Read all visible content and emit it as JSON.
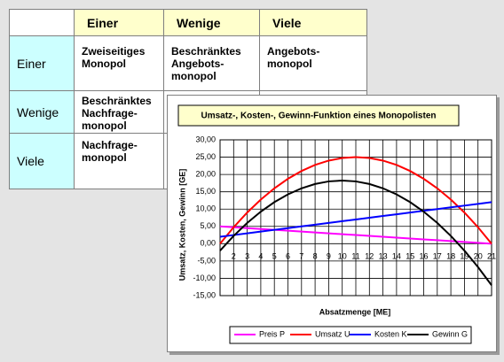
{
  "table": {
    "header": [
      "Einer",
      "Wenige",
      "Viele"
    ],
    "rows": [
      {
        "label": "Einer",
        "cells": [
          "Zweiseitiges\nMonopol",
          "Beschränktes\nAngebots-\nmonopol",
          "Angebots-\nmonopol"
        ]
      },
      {
        "label": "Wenige",
        "cells": [
          "Beschränktes\nNachfrage-\nmonopol"
        ]
      },
      {
        "label": "Viele",
        "cells": [
          "Nachfrage-\nmonopol"
        ]
      }
    ]
  },
  "chart_data": {
    "type": "line",
    "title": "Umsatz-, Kosten-, Gewinn-Funktion eines Monopolisten",
    "x_label": "Absatzmenge [ME]",
    "y_label": "Umsatz, Kosten, Gewinn [GE]",
    "categories": [
      null,
      "2",
      "3",
      "4",
      "5",
      "6",
      "7",
      "8",
      "9",
      "10",
      "11",
      "12",
      "13",
      "14",
      "15",
      "16",
      "17",
      "18",
      "19",
      "20",
      "21"
    ],
    "series": [
      {
        "name": "Preis P",
        "color": "#ff00ff",
        "values": [
          5,
          4.75,
          4.5,
          4.25,
          4,
          3.75,
          3.5,
          3.25,
          3,
          2.75,
          2.5,
          2.25,
          2,
          1.75,
          1.5,
          1.25,
          1,
          0.75,
          0.5,
          0.25,
          0
        ]
      },
      {
        "name": "Umsatz U",
        "color": "#ff0000",
        "values": [
          0,
          4.75,
          9,
          12.75,
          16,
          18.75,
          21,
          22.75,
          24,
          24.75,
          25,
          24.75,
          24,
          22.75,
          21,
          18.75,
          16,
          12.75,
          9,
          4.75,
          0
        ]
      },
      {
        "name": "Kosten K",
        "color": "#0000ff",
        "values": [
          2,
          2.5,
          3,
          3.5,
          4,
          4.5,
          5,
          5.5,
          6,
          6.5,
          7,
          7.5,
          8,
          8.5,
          9,
          9.5,
          10,
          10.5,
          11,
          11.5,
          12
        ]
      },
      {
        "name": "Gewinn G",
        "color": "#000000",
        "values": [
          -2,
          2.25,
          6,
          9.25,
          12,
          14.25,
          16,
          17.25,
          18,
          18.25,
          18,
          17.25,
          16,
          14.25,
          12,
          9.25,
          6,
          2.25,
          -2,
          -6.75,
          -12
        ]
      }
    ],
    "ylim": [
      -15,
      30
    ],
    "yticks": [
      {
        "value": 30,
        "label": "30,00"
      },
      {
        "value": 25,
        "label": "25,00"
      },
      {
        "value": 20,
        "label": "20,00"
      },
      {
        "value": 15,
        "label": "15,00"
      },
      {
        "value": 10,
        "label": "10,00"
      },
      {
        "value": 5,
        "label": "5,00"
      },
      {
        "value": 0,
        "label": "0,00"
      },
      {
        "value": -5,
        "label": "-5,00"
      },
      {
        "value": -10,
        "label": "-10,00"
      },
      {
        "value": -15,
        "label": "-15,00"
      }
    ],
    "grid": true,
    "legend": "bottom"
  }
}
